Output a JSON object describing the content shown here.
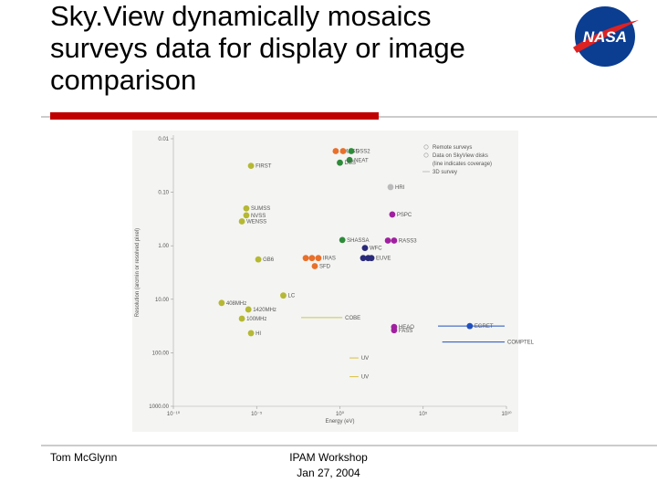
{
  "slide": {
    "title_lines": [
      "Sky.View dynamically mosaics",
      "surveys data for display or image",
      "comparison"
    ],
    "logo": "NASA",
    "footer_left": "Tom McGlynn",
    "footer_center": [
      "IPAM Workshop",
      "Jan 27, 2004"
    ]
  },
  "chart_data": {
    "type": "scatter",
    "x_label": "Energy (eV)",
    "y_label": "Resolution (arcmin or resolved pixel)",
    "xlim": [
      1e-10,
      10000000000.0
    ],
    "ylim": [
      0.01,
      1000
    ],
    "x_log": true,
    "y_log": true,
    "y_inverted": true,
    "xticks": [
      {
        "value": 1e-10,
        "label": "10⁻¹⁰"
      },
      {
        "value": 1e-05,
        "label": "10⁻⁵"
      },
      {
        "value": 1,
        "label": "10⁰"
      },
      {
        "value": 100000.0,
        "label": "10⁵"
      },
      {
        "value": 10000000000.0,
        "label": "10¹⁰"
      }
    ],
    "yticks": [
      0.01,
      {
        "value": 0.1,
        "label": "0.10"
      },
      {
        "value": 1,
        "label": "1.00"
      },
      {
        "value": 10,
        "label": "10.00"
      },
      {
        "value": 100,
        "label": "100.00"
      },
      {
        "value": 1000,
        "label": "1000.00"
      }
    ],
    "legend": [
      "Remote surveys",
      "Data on SkyView disks",
      "(line indicates coverage)",
      "3D survey"
    ],
    "points": [
      {
        "label": "2MASS",
        "color": "#e8702a",
        "x": 0.56,
        "y": 0.017
      },
      {
        "label": null,
        "color": "#e8702a",
        "x": 1.55,
        "y": 0.017
      },
      {
        "label": "DSS2",
        "color": "#2e8b3a",
        "x": 4.8,
        "y": 0.017
      },
      {
        "label": "NEAT",
        "color": "#2e8b3a",
        "x": 3.8,
        "y": 0.025
      },
      {
        "label": "DSS",
        "color": "#2e8b3a",
        "x": 1,
        "y": 0.028
      },
      {
        "label": "FIRST",
        "color": "#b5b832",
        "x": 4.6e-06,
        "y": 0.032
      },
      {
        "label": "HRI",
        "color": "#bbbbbb",
        "x": 1100,
        "y": 0.08
      },
      {
        "label": "PSPC",
        "color": "#a020a0",
        "x": 1400,
        "y": 0.26
      },
      {
        "label": "SUMSS",
        "color": "#b5b832",
        "x": 2.4e-06,
        "y": 0.2
      },
      {
        "label": "NVSS",
        "color": "#b5b832",
        "x": 2.4e-06,
        "y": 0.27
      },
      {
        "label": "WENSS",
        "color": "#b5b832",
        "x": 1.3e-06,
        "y": 0.35
      },
      {
        "label": "SHASSA",
        "color": "#2e8b3a",
        "x": 1.4,
        "y": 0.78
      },
      {
        "label": null,
        "color": "#a020a0",
        "x": 760,
        "y": 0.8
      },
      {
        "label": "RASS3",
        "color": "#a020a0",
        "x": 1800,
        "y": 0.8
      },
      {
        "label": "WFC",
        "color": "#2a2a7a",
        "x": 32,
        "y": 1.1
      },
      {
        "label": null,
        "color": "#2a2a7a",
        "x": 25,
        "y": 1.7
      },
      {
        "label": null,
        "color": "#2a2a7a",
        "x": 50,
        "y": 1.7
      },
      {
        "label": "EUVE",
        "color": "#2a2a7a",
        "x": 78,
        "y": 1.7
      },
      {
        "label": null,
        "color": "#e8702a",
        "x": 0.0089,
        "y": 1.7
      },
      {
        "label": null,
        "color": "#e8702a",
        "x": 0.021,
        "y": 1.7
      },
      {
        "label": "IRAS",
        "color": "#e8702a",
        "x": 0.051,
        "y": 1.7
      },
      {
        "label": "SFD",
        "color": "#e8702a",
        "x": 0.031,
        "y": 2.4
      },
      {
        "label": "GB6",
        "color": "#b5b832",
        "x": 1.26e-05,
        "y": 1.8
      },
      {
        "label": "LC",
        "color": "#b5b832",
        "x": 0.0004,
        "y": 8.5
      },
      {
        "label": "408MHz",
        "color": "#b5b832",
        "x": 7.9e-08,
        "y": 11.7
      },
      {
        "label": "1420MHz",
        "color": "#b5b832",
        "x": 3.2e-06,
        "y": 15.5
      },
      {
        "label": "100MHz",
        "color": "#b5b832",
        "x": 1.3e-06,
        "y": 23
      },
      {
        "label": "HI",
        "color": "#b5b832",
        "x": 4.6e-06,
        "y": 43
      },
      {
        "label": "HEAO",
        "color": "#a020a0",
        "x": 1800,
        "y": 33
      },
      {
        "label": "FASS",
        "color": "#a020a0",
        "x": 1800,
        "y": 38
      },
      {
        "label": "EGRET",
        "color": "#2050c0",
        "x": 63000000.0,
        "y": 31.7
      }
    ],
    "segments": [
      {
        "label": "COBE",
        "color": "#c8c850",
        "x": [
          0.0047,
          1.4
        ],
        "y": 22
      },
      {
        "label": "UV",
        "color": "#d8c040",
        "x": [
          3.8,
          13
        ],
        "y": 125
      },
      {
        "label": "UV",
        "color": "#d8c040",
        "x": [
          3.8,
          13
        ],
        "y": 280
      },
      {
        "label": null,
        "color": "#2050c0",
        "x": [
          780000.0,
          7800000000.0
        ],
        "y": 31.7
      },
      {
        "label": "COMPTEL",
        "color": "#2050c0",
        "x": [
          1400000.0,
          7800000000.0
        ],
        "y": 63
      }
    ]
  }
}
